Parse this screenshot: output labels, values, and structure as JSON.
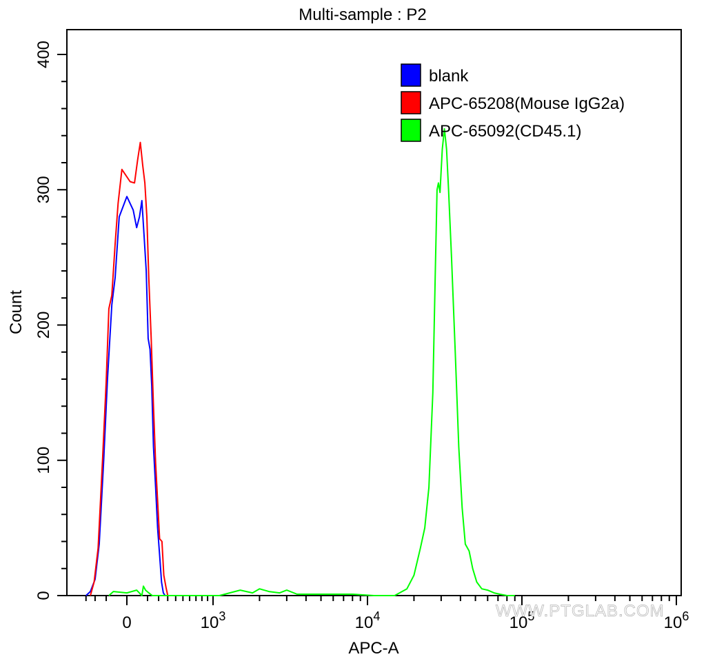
{
  "chart_data": {
    "type": "line",
    "title": "Multi-sample : P2",
    "xlabel": "APC-A",
    "ylabel": "Count",
    "xscale": "biexponential",
    "xlim": [
      -350,
      1000000
    ],
    "ylim": [
      0,
      400
    ],
    "xticks": [
      {
        "value": 0,
        "label": "0"
      },
      {
        "value": 1000,
        "label": "10",
        "exp": "3"
      },
      {
        "value": 10000,
        "label": "10",
        "exp": "4"
      },
      {
        "value": 100000,
        "label": "10",
        "exp": "5"
      },
      {
        "value": 1000000,
        "label": "10",
        "exp": "6"
      }
    ],
    "yticks": [
      0,
      100,
      200,
      300,
      400
    ],
    "legend_position": "top-right",
    "series": [
      {
        "name": "blank",
        "color": "#0000ff",
        "points": [
          [
            -300,
            0
          ],
          [
            -250,
            3
          ],
          [
            -200,
            12
          ],
          [
            -160,
            38
          ],
          [
            -120,
            100
          ],
          [
            -90,
            160
          ],
          [
            -60,
            215
          ],
          [
            -40,
            235
          ],
          [
            -20,
            280
          ],
          [
            0,
            295
          ],
          [
            15,
            285
          ],
          [
            30,
            272
          ],
          [
            45,
            280
          ],
          [
            60,
            292
          ],
          [
            75,
            265
          ],
          [
            90,
            240
          ],
          [
            105,
            190
          ],
          [
            120,
            182
          ],
          [
            135,
            155
          ],
          [
            150,
            110
          ],
          [
            170,
            80
          ],
          [
            190,
            50
          ],
          [
            210,
            30
          ],
          [
            230,
            10
          ],
          [
            250,
            2
          ],
          [
            270,
            0
          ]
        ]
      },
      {
        "name": "APC-65208(Mouse IgG2a)",
        "color": "#ff0000",
        "points": [
          [
            -250,
            0
          ],
          [
            -210,
            10
          ],
          [
            -170,
            35
          ],
          [
            -130,
            100
          ],
          [
            -100,
            158
          ],
          [
            -80,
            212
          ],
          [
            -60,
            222
          ],
          [
            -40,
            260
          ],
          [
            -25,
            290
          ],
          [
            -10,
            315
          ],
          [
            5,
            306
          ],
          [
            20,
            305
          ],
          [
            35,
            322
          ],
          [
            50,
            335
          ],
          [
            65,
            318
          ],
          [
            80,
            305
          ],
          [
            95,
            280
          ],
          [
            110,
            235
          ],
          [
            130,
            190
          ],
          [
            150,
            140
          ],
          [
            170,
            98
          ],
          [
            190,
            70
          ],
          [
            210,
            42
          ],
          [
            235,
            40
          ],
          [
            255,
            15
          ],
          [
            280,
            6
          ],
          [
            300,
            0
          ]
        ]
      },
      {
        "name": "APC-65092(CD45.1)",
        "color": "#00ff00",
        "points": [
          [
            -80,
            0
          ],
          [
            -50,
            3
          ],
          [
            0,
            2
          ],
          [
            30,
            4
          ],
          [
            60,
            0
          ],
          [
            70,
            7
          ],
          [
            85,
            4
          ],
          [
            110,
            2
          ],
          [
            140,
            0
          ],
          [
            200,
            0
          ],
          [
            500,
            0
          ],
          [
            1100,
            0
          ],
          [
            1500,
            4
          ],
          [
            1800,
            2
          ],
          [
            2000,
            5
          ],
          [
            2300,
            3
          ],
          [
            2700,
            2
          ],
          [
            3000,
            4
          ],
          [
            3500,
            1
          ],
          [
            5000,
            1
          ],
          [
            8000,
            1
          ],
          [
            11000,
            0
          ],
          [
            15000,
            0
          ],
          [
            18000,
            5
          ],
          [
            20000,
            15
          ],
          [
            22000,
            35
          ],
          [
            23500,
            50
          ],
          [
            25000,
            80
          ],
          [
            26500,
            150
          ],
          [
            27500,
            240
          ],
          [
            28200,
            300
          ],
          [
            28800,
            305
          ],
          [
            29500,
            298
          ],
          [
            30500,
            330
          ],
          [
            31500,
            345
          ],
          [
            32500,
            330
          ],
          [
            33500,
            300
          ],
          [
            35000,
            250
          ],
          [
            37000,
            180
          ],
          [
            39000,
            110
          ],
          [
            41000,
            65
          ],
          [
            43000,
            38
          ],
          [
            45500,
            33
          ],
          [
            48000,
            20
          ],
          [
            51000,
            10
          ],
          [
            55000,
            5
          ],
          [
            60000,
            4
          ],
          [
            66000,
            2
          ],
          [
            72000,
            1
          ],
          [
            80000,
            0
          ],
          [
            90000,
            0
          ]
        ]
      }
    ],
    "watermark": "WWW.PTGLAB.COM"
  }
}
